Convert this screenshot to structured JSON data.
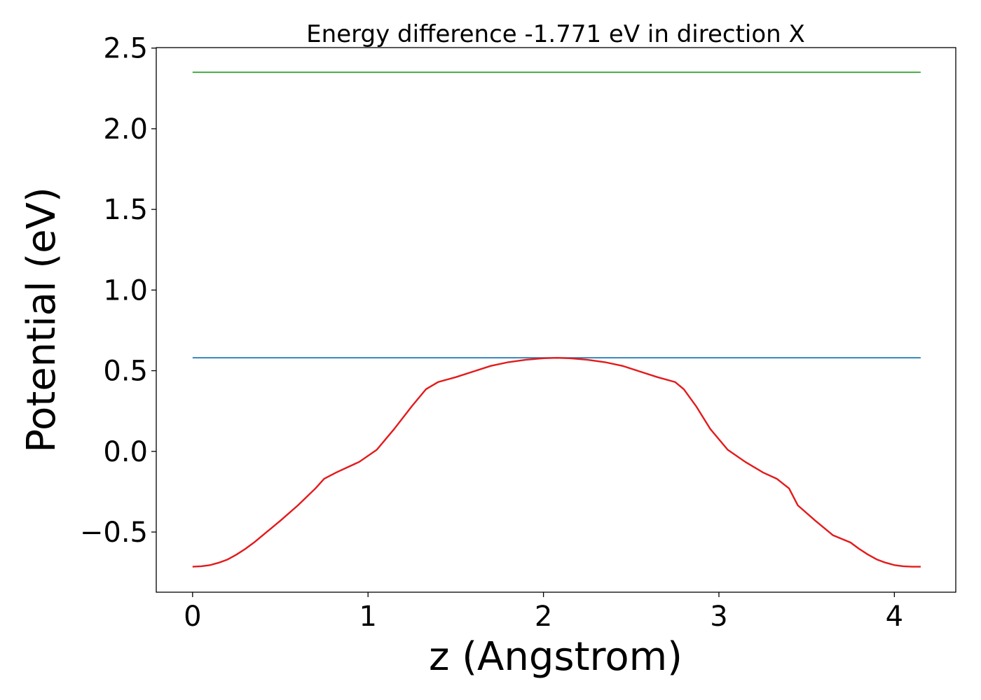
{
  "chart_data": {
    "type": "line",
    "title": "Energy difference -1.771 eV in direction X",
    "xlabel": "z (Angstrom)",
    "ylabel": "Potential (eV)",
    "xlim": [
      -0.207,
      4.35
    ],
    "ylim": [
      -0.873,
      2.503
    ],
    "xticks": [
      0,
      1,
      2,
      3,
      4
    ],
    "xtick_labels": [
      "0",
      "1",
      "2",
      "3",
      "4"
    ],
    "yticks": [
      -0.5,
      0.0,
      0.5,
      1.0,
      1.5,
      2.0,
      2.5
    ],
    "ytick_labels": [
      "−0.5",
      "0.0",
      "0.5",
      "1.0",
      "1.5",
      "2.0",
      "2.5"
    ],
    "grid": false,
    "series": [
      {
        "color": "#2ca02c",
        "x": [
          0,
          4.15
        ],
        "y": [
          2.35,
          2.35
        ]
      },
      {
        "color": "#1f77b4",
        "x": [
          0,
          4.15
        ],
        "y": [
          0.58,
          0.58
        ]
      },
      {
        "color": "#e31a1c",
        "x": [
          0.0,
          0.05,
          0.1,
          0.15,
          0.2,
          0.25,
          0.3,
          0.35,
          0.4,
          0.5,
          0.6,
          0.7,
          0.75,
          0.82,
          0.95,
          1.05,
          1.15,
          1.25,
          1.33,
          1.4,
          1.5,
          1.6,
          1.7,
          1.8,
          1.9,
          2.0,
          2.075,
          2.15,
          2.25,
          2.35,
          2.45,
          2.55,
          2.65,
          2.75,
          2.8,
          2.87,
          2.95,
          3.05,
          3.15,
          3.25,
          3.33,
          3.4,
          3.45,
          3.55,
          3.65,
          3.75,
          3.8,
          3.85,
          3.9,
          3.95,
          4.0,
          4.05,
          4.1,
          4.15
        ],
        "y": [
          -0.715,
          -0.712,
          -0.705,
          -0.69,
          -0.67,
          -0.64,
          -0.605,
          -0.565,
          -0.52,
          -0.43,
          -0.335,
          -0.23,
          -0.17,
          -0.13,
          -0.065,
          0.01,
          0.14,
          0.28,
          0.385,
          0.43,
          0.46,
          0.495,
          0.53,
          0.553,
          0.568,
          0.577,
          0.58,
          0.577,
          0.568,
          0.553,
          0.53,
          0.495,
          0.46,
          0.43,
          0.385,
          0.28,
          0.14,
          0.01,
          -0.065,
          -0.13,
          -0.17,
          -0.23,
          -0.335,
          -0.43,
          -0.52,
          -0.565,
          -0.605,
          -0.64,
          -0.67,
          -0.69,
          -0.705,
          -0.712,
          -0.715,
          -0.715
        ]
      }
    ]
  }
}
